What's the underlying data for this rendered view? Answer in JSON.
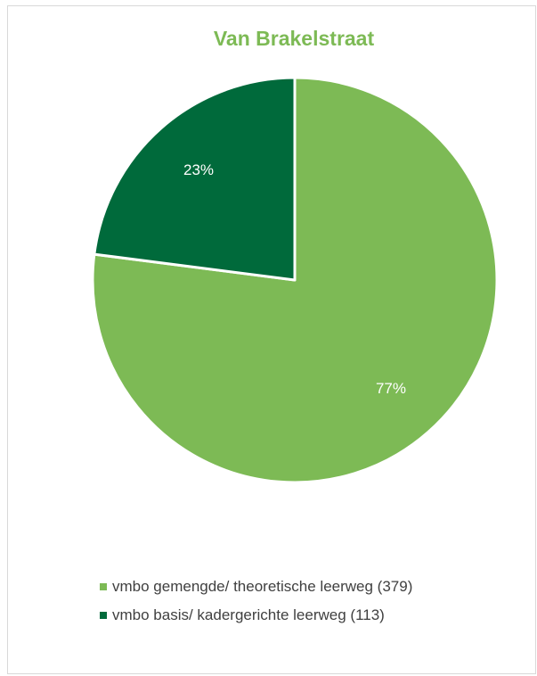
{
  "chart_data": {
    "type": "pie",
    "title": "Van Brakelstraat",
    "categories": [
      "vmbo gemengde/ theoretische leerweg (379)",
      "vmbo basis/ kadergerichte leerweg (113)"
    ],
    "values": [
      379,
      113
    ],
    "labels": [
      "77%",
      "23%"
    ],
    "colors": [
      "#7dba55",
      "#006a3b"
    ],
    "title_color": "#7dba55",
    "legend_position": "bottom"
  }
}
